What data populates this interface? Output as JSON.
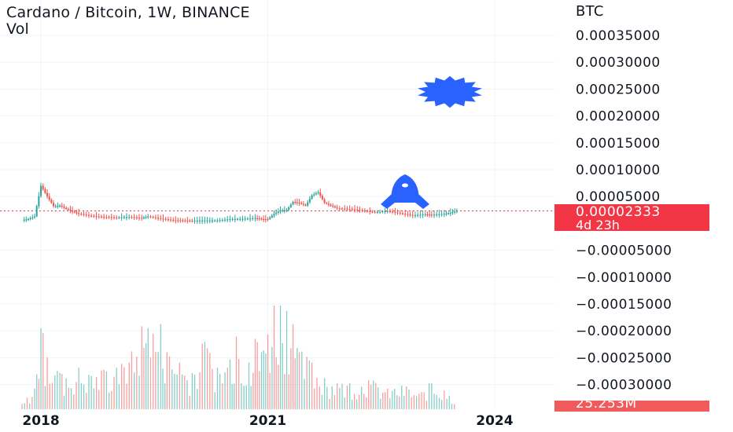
{
  "header": {
    "title": "Cardano / Bitcoin, 1W, BINANCE",
    "volume_label": "Vol"
  },
  "price_axis": {
    "unit": "BTC"
  },
  "last_price": {
    "value": "0.00002333",
    "countdown": "4d 23h",
    "color": "#f23645"
  },
  "last_volume": {
    "value": "25.253M",
    "color": "#f05a5a"
  },
  "icons": {
    "sticker_top": "blue-starburst-icon",
    "sticker_bottom": "blue-rocket-icon",
    "sticker_color": "#2962ff"
  },
  "colors": {
    "up": "#26a69a",
    "down": "#ef5350",
    "grid": "#f0f3fa",
    "text": "#131722",
    "last_price_line": "#f23645"
  },
  "chart_data": [
    {
      "type": "candlestick",
      "x_ticks": [
        "2018",
        "2021",
        "2024"
      ],
      "y_ticks": [
        "0.00035000",
        "0.00030000",
        "0.00025000",
        "0.00020000",
        "0.00015000",
        "0.00010000",
        "0.00005000",
        "−0.00005000",
        "−0.00010000",
        "−0.00015000",
        "−0.00020000",
        "−0.00025000",
        "−0.00030000"
      ],
      "y_range": [
        -0.00031,
        0.00037
      ],
      "x_range": [
        "2017-09",
        "2024-08"
      ],
      "series": [
        {
          "values": [
            [
              "2017-10",
              6.5e-06
            ],
            [
              "2017-11",
              8e-06
            ],
            [
              "2017-12",
              1.3e-05
            ],
            [
              "2018-01",
              7e-05
            ],
            [
              "2018-02",
              5e-05
            ],
            [
              "2018-03",
              3.2e-05
            ],
            [
              "2018-04",
              3.3e-05
            ],
            [
              "2018-05",
              2.7e-05
            ],
            [
              "2018-06",
              2.2e-05
            ],
            [
              "2018-07",
              1.8e-05
            ],
            [
              "2018-09",
              1.4e-05
            ],
            [
              "2018-11",
              1.2e-05
            ],
            [
              "2019-01",
              1.1e-05
            ],
            [
              "2019-03",
              1.2e-05
            ],
            [
              "2019-05",
              1e-05
            ],
            [
              "2019-06",
              1.3e-05
            ],
            [
              "2019-08",
              9e-06
            ],
            [
              "2019-10",
              6e-06
            ],
            [
              "2020-01",
              5e-06
            ],
            [
              "2020-03",
              5.5e-06
            ],
            [
              "2020-05",
              5.5e-06
            ],
            [
              "2020-07",
              8e-06
            ],
            [
              "2020-09",
              8.5e-06
            ],
            [
              "2020-11",
              1e-05
            ],
            [
              "2020-12",
              8.2e-06
            ],
            [
              "2021-01",
              7.8e-06
            ],
            [
              "2021-02",
              1.8e-05
            ],
            [
              "2021-03",
              2.4e-05
            ],
            [
              "2021-04",
              2.5e-05
            ],
            [
              "2021-05",
              4e-05
            ],
            [
              "2021-06",
              3.8e-05
            ],
            [
              "2021-07",
              3.3e-05
            ],
            [
              "2021-08",
              5.2e-05
            ],
            [
              "2021-09",
              5.8e-05
            ],
            [
              "2021-10",
              3.8e-05
            ],
            [
              "2021-11",
              3.3e-05
            ],
            [
              "2021-12",
              2.8e-05
            ],
            [
              "2022-02",
              2.7e-05
            ],
            [
              "2022-04",
              2.4e-05
            ],
            [
              "2022-06",
              2.1e-05
            ],
            [
              "2022-08",
              2.3e-05
            ],
            [
              "2022-10",
              1.9e-05
            ],
            [
              "2022-12",
              1.5e-05
            ],
            [
              "2023-02",
              1.7e-05
            ],
            [
              "2023-03",
              1.6e-05
            ],
            [
              "2023-05",
              1.8e-05
            ],
            [
              "2023-06",
              2e-05
            ],
            [
              "2023-07",
              2.33e-05
            ]
          ]
        }
      ]
    },
    {
      "type": "bar",
      "name": "Vol",
      "x_range": [
        "2017-09",
        "2024-08"
      ],
      "values_relative": [
        [
          "2017-10",
          0.05
        ],
        [
          "2017-12",
          0.2
        ],
        [
          "2018-01",
          0.78
        ],
        [
          "2018-02",
          0.5
        ],
        [
          "2018-04",
          0.35
        ],
        [
          "2018-05",
          0.3
        ],
        [
          "2018-07",
          0.4
        ],
        [
          "2018-09",
          0.32
        ],
        [
          "2018-11",
          0.38
        ],
        [
          "2019-01",
          0.4
        ],
        [
          "2019-03",
          0.45
        ],
        [
          "2019-05",
          0.8
        ],
        [
          "2019-06",
          0.78
        ],
        [
          "2019-08",
          0.82
        ],
        [
          "2019-09",
          0.55
        ],
        [
          "2019-11",
          0.45
        ],
        [
          "2020-01",
          0.35
        ],
        [
          "2020-03",
          0.65
        ],
        [
          "2020-05",
          0.4
        ],
        [
          "2020-07",
          0.48
        ],
        [
          "2020-08",
          0.7
        ],
        [
          "2020-10",
          0.45
        ],
        [
          "2020-11",
          0.68
        ],
        [
          "2020-12",
          0.55
        ],
        [
          "2021-01",
          0.72
        ],
        [
          "2021-02",
          1.0
        ],
        [
          "2021-03",
          1.0
        ],
        [
          "2021-04",
          0.95
        ],
        [
          "2021-05",
          0.82
        ],
        [
          "2021-06",
          0.55
        ],
        [
          "2021-08",
          0.45
        ],
        [
          "2021-10",
          0.3
        ],
        [
          "2021-12",
          0.25
        ],
        [
          "2022-02",
          0.25
        ],
        [
          "2022-05",
          0.28
        ],
        [
          "2022-08",
          0.2
        ],
        [
          "2022-11",
          0.22
        ],
        [
          "2023-01",
          0.15
        ],
        [
          "2023-03",
          0.25
        ],
        [
          "2023-05",
          0.18
        ],
        [
          "2023-07",
          0.1
        ]
      ]
    }
  ]
}
